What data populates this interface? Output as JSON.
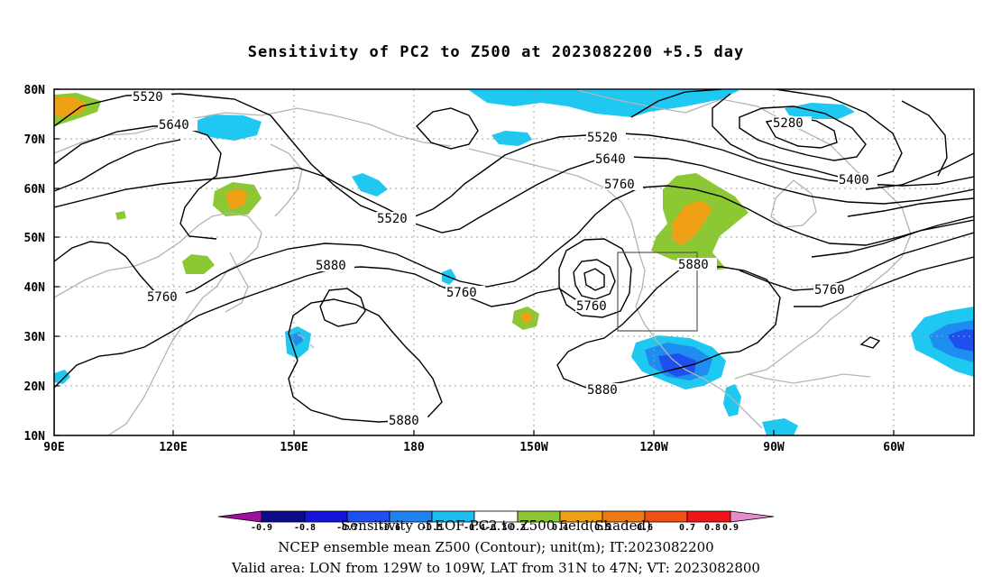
{
  "title": "Sensitivity of PC2 to Z500 at 2023082200 +5.5 day",
  "lat_labels": [
    "80N",
    "70N",
    "60N",
    "50N",
    "40N",
    "30N",
    "20N",
    "10N"
  ],
  "lon_labels": [
    "90E",
    "120E",
    "150E",
    "180",
    "150W",
    "120W",
    "90W",
    "60W"
  ],
  "contour_labels": [
    {
      "text": "5520",
      "id": "c1"
    },
    {
      "text": "5640",
      "id": "c2"
    },
    {
      "text": "5520",
      "id": "c3"
    },
    {
      "text": "5520",
      "id": "c4"
    },
    {
      "text": "5640",
      "id": "c5"
    },
    {
      "text": "5760",
      "id": "c6"
    },
    {
      "text": "5280",
      "id": "c7"
    },
    {
      "text": "5400",
      "id": "c8"
    },
    {
      "text": "5880",
      "id": "c9"
    },
    {
      "text": "5760",
      "id": "c10"
    },
    {
      "text": "5760",
      "id": "c11"
    },
    {
      "text": "5760",
      "id": "c12"
    },
    {
      "text": "5880",
      "id": "c13"
    },
    {
      "text": "5760",
      "id": "c14"
    },
    {
      "text": "5880",
      "id": "c15"
    },
    {
      "text": "5880",
      "id": "c16"
    }
  ],
  "colorbar": {
    "labels": [
      "-0.9",
      "-0.8",
      "-0.7",
      "-0.6",
      "-0.5",
      "-0.4",
      "-0.3",
      "0.3",
      "0.4",
      "0.5",
      "0.6",
      "0.7",
      "0.8",
      "0.9"
    ],
    "colors": [
      "#a0109e",
      "#0a0a8c",
      "#1414dc",
      "#1e50f0",
      "#1e82f0",
      "#1ebef0",
      "#ffffff",
      "#8cc832",
      "#f0a014",
      "#f07814",
      "#f05014",
      "#f01414",
      "#e68cc8"
    ]
  },
  "captions": {
    "line1": "Sensitivity of EOF PC2 to Z500 field(Shaded)",
    "line2": "NCEP ensemble mean Z500 (Contour); unit(m); IT:2023082200",
    "line3": "Valid area: LON from 129W to 109W, LAT from 31N to 47N; VT: 2023082800"
  },
  "colors": {
    "contour": "#000000",
    "coast": "#b4b4b4",
    "grid": "#a0a0a0",
    "blue_light": "#1ec8f0",
    "blue_mid": "#1e8cf0",
    "blue_dark": "#1e50f0",
    "green": "#8cc832",
    "orange": "#f0a014"
  }
}
